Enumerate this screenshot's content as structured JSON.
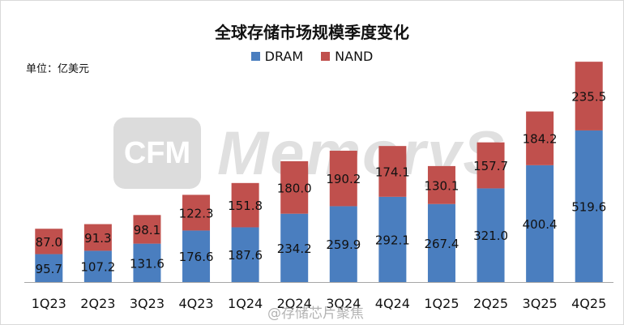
{
  "title": "全球存储市场规模季度变化",
  "unit_label": "单位：亿美元",
  "watermark": {
    "logo": "CFM",
    "text": "MemoryS"
  },
  "credit": "@存储芯片聚焦",
  "colors": {
    "DRAM": "#4a7ebf",
    "NAND": "#c0504d",
    "axis": "#a6a6a6",
    "label": "#111111"
  },
  "chart_data": {
    "type": "bar",
    "stacked": true,
    "title": "全球存储市场规模季度变化",
    "ylabel": "单位：亿美元",
    "legend_position": "top",
    "grid": false,
    "categories": [
      "1Q23",
      "2Q23",
      "3Q23",
      "4Q23",
      "1Q24",
      "2Q24",
      "3Q24",
      "4Q24",
      "1Q25",
      "2Q25",
      "3Q25",
      "4Q25"
    ],
    "series": [
      {
        "name": "DRAM",
        "values": [
          95.7,
          107.2,
          131.6,
          176.6,
          187.6,
          234.2,
          259.9,
          292.1,
          267.4,
          321.0,
          400.4,
          519.6
        ]
      },
      {
        "name": "NAND",
        "values": [
          87.0,
          91.3,
          98.1,
          122.3,
          151.8,
          180.0,
          190.2,
          174.1,
          130.1,
          157.7,
          184.2,
          235.5
        ]
      }
    ],
    "ylim": [
      0,
      800
    ]
  }
}
